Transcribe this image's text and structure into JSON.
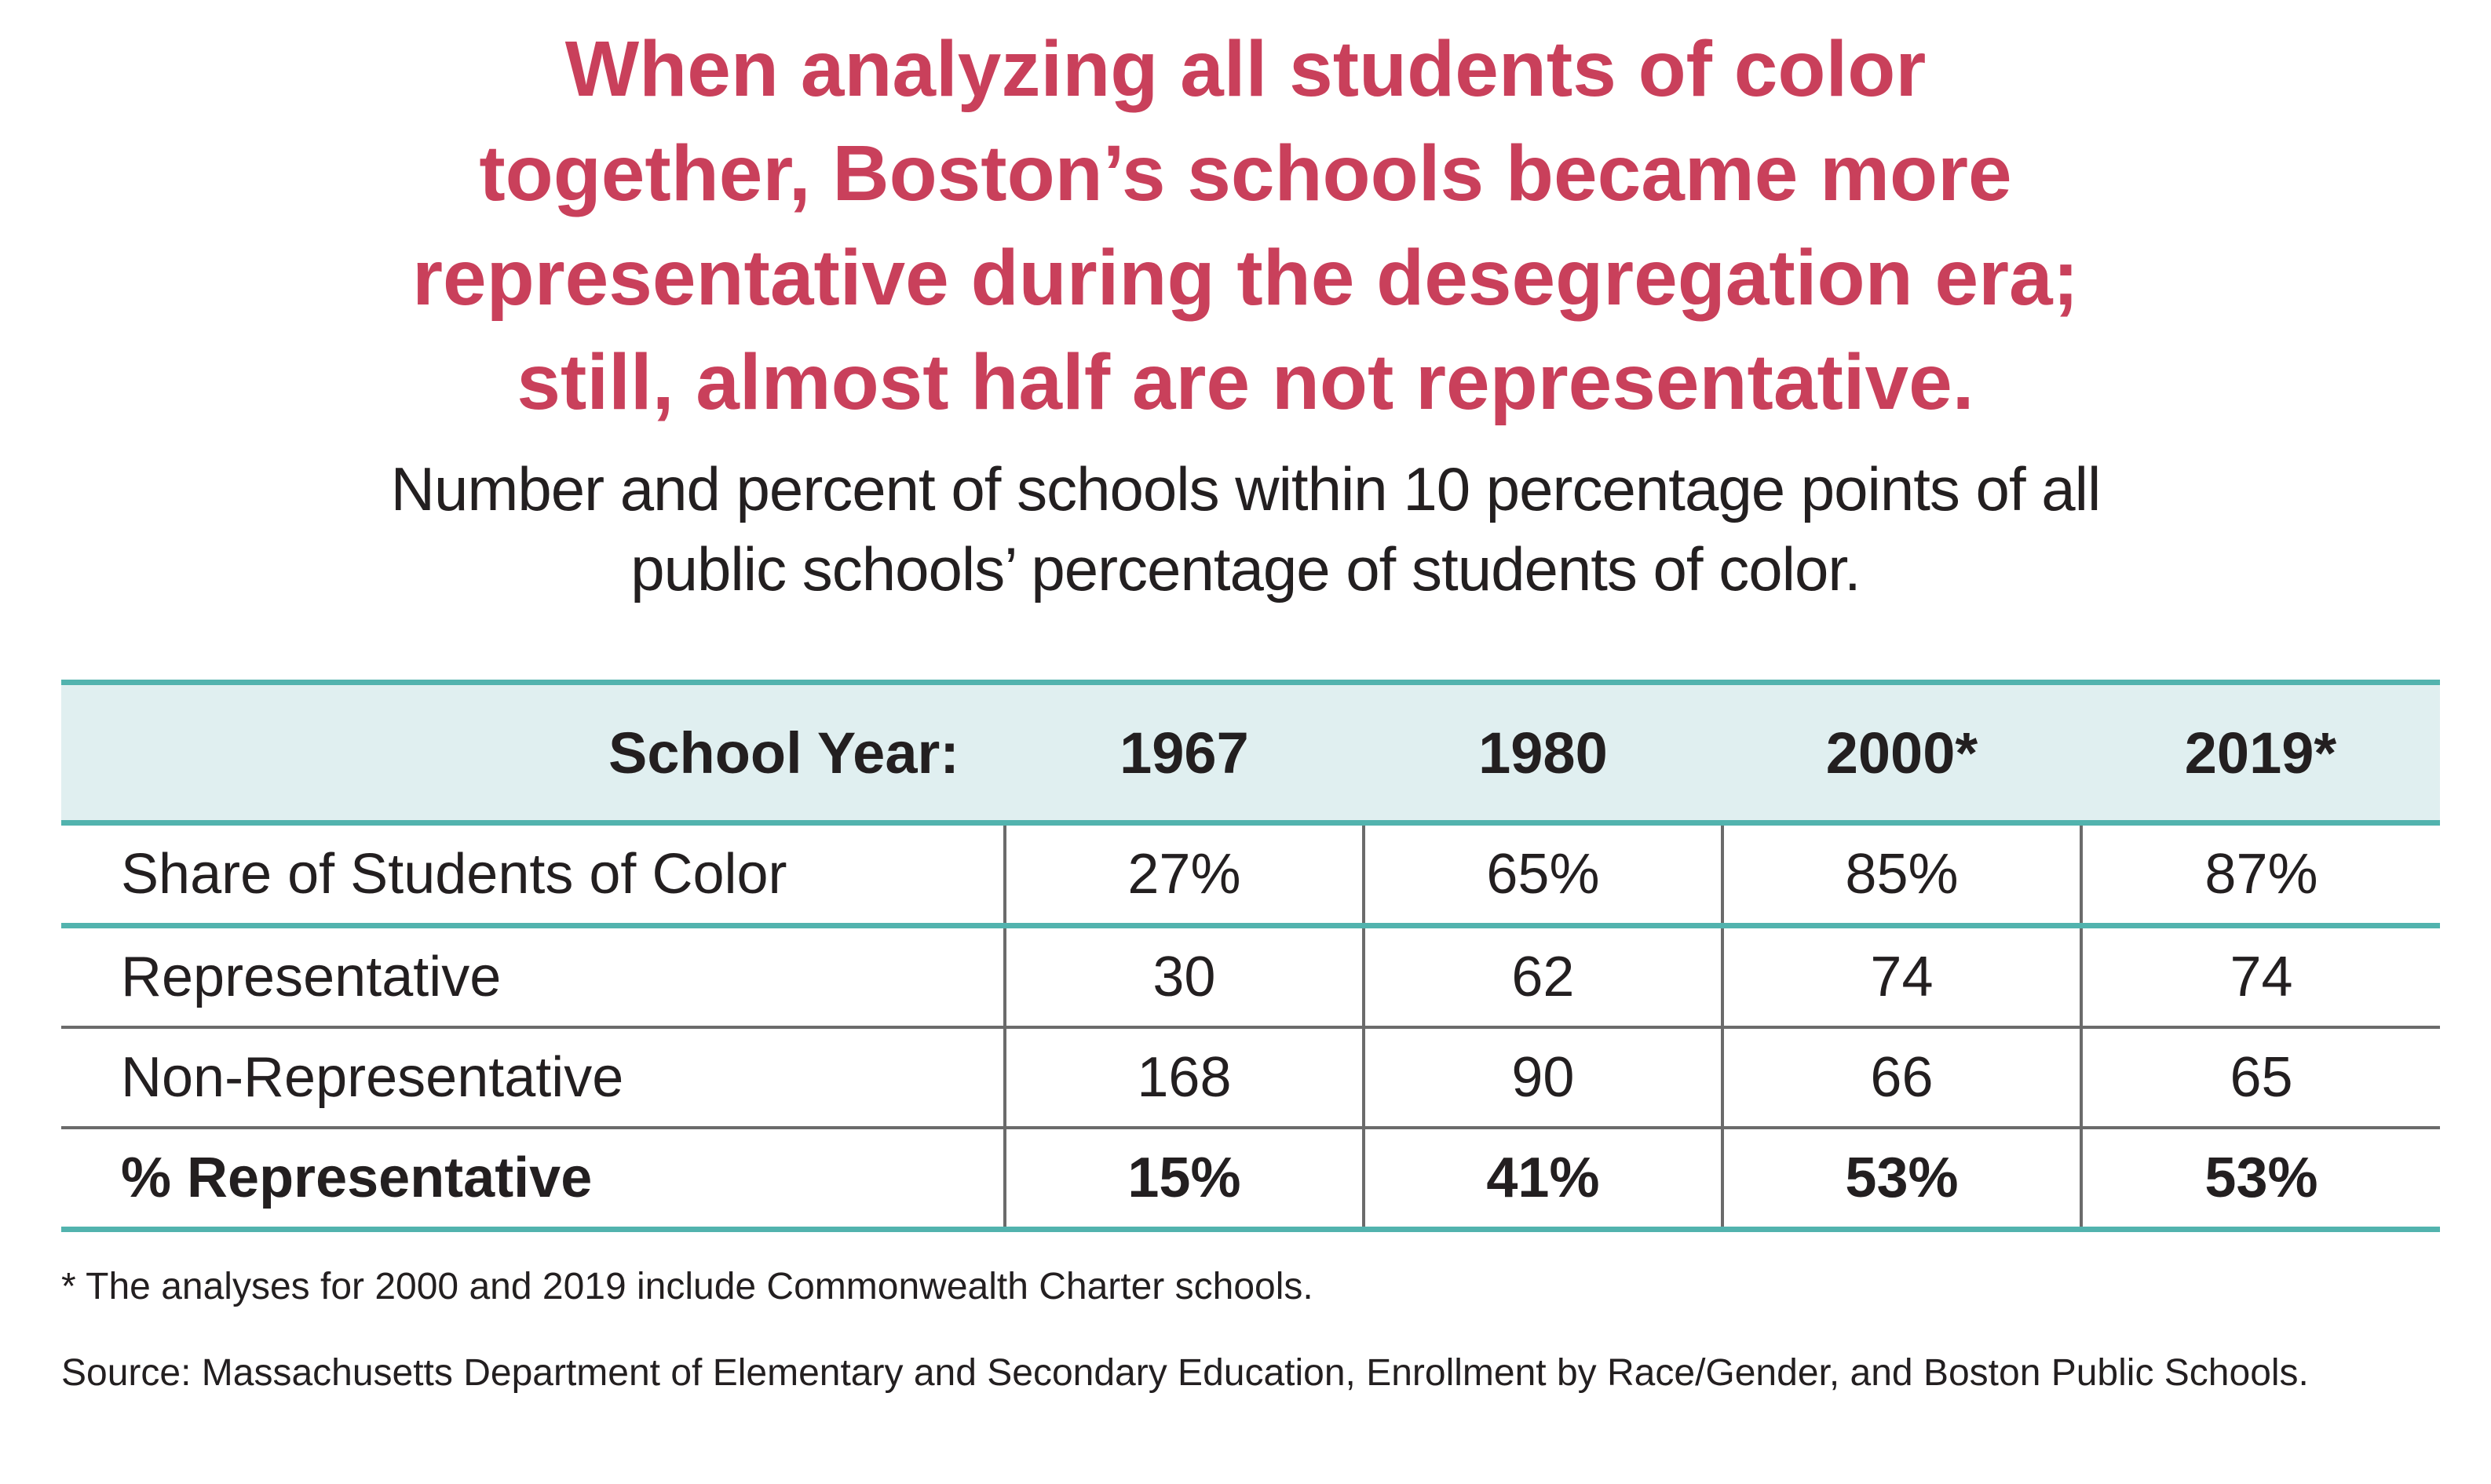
{
  "title_lines": [
    "When analyzing all students of color",
    "together, Boston’s schools became more",
    "representative during the desegregation era;",
    "still, almost half are not representative."
  ],
  "subtitle_lines": [
    "Number and percent of schools within 10 percentage points of all",
    "public schools’ percentage of students of color."
  ],
  "table": {
    "header": [
      "School Year:",
      "1967",
      "1980",
      "2000*",
      "2019*"
    ],
    "rows": [
      {
        "label": "Share of Students of Color",
        "values": [
          "27%",
          "65%",
          "85%",
          "87%"
        ]
      },
      {
        "label": "Representative",
        "values": [
          "30",
          "62",
          "74",
          "74"
        ]
      },
      {
        "label": "Non-Representative",
        "values": [
          "168",
          "90",
          "66",
          "65"
        ]
      },
      {
        "label": "% Representative",
        "values": [
          "15%",
          "41%",
          "53%",
          "53%"
        ]
      }
    ]
  },
  "footnote": "* The analyses for 2000 and 2019 include Commonwealth Charter schools.",
  "source": "Source: Massachusetts Department of Elementary and Secondary Education, Enrollment by Race/Gender, and Boston Public Schools.",
  "colors": {
    "title": "#c9405b",
    "accent": "#52b3ae",
    "header_bg": "#e0eff0"
  }
}
